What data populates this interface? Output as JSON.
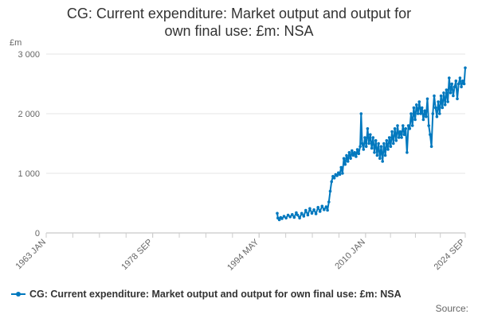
{
  "chart_data": {
    "type": "line",
    "title_lines": [
      "CG: Current expenditure: Market output and output for",
      "own final use: £m: NSA"
    ],
    "unit_label": "£m",
    "yticks": [
      0,
      1000,
      2000,
      3000
    ],
    "ytick_labels": [
      "0",
      "1 000",
      "2 000",
      "3 000"
    ],
    "ylim": [
      0,
      3000
    ],
    "xlim": [
      1963.0,
      2024.67
    ],
    "xticks": [
      1963.0,
      1978.67,
      1994.33,
      2010.0,
      2024.67
    ],
    "xtick_labels": [
      "1963 JAN",
      "1978 SEP",
      "1994 MAY",
      "2010 JAN",
      "2024 SEP"
    ],
    "grid": "horizontal",
    "legend_position": "bottom",
    "series": [
      {
        "name": "CG: Current expenditure: Market output and output for own final use: £m: NSA",
        "color": "#0078be",
        "points": [
          [
            1997.0,
            330
          ],
          [
            1997.1,
            250
          ],
          [
            1997.3,
            220
          ],
          [
            1997.5,
            260
          ],
          [
            1997.7,
            240
          ],
          [
            1998.0,
            280
          ],
          [
            1998.3,
            250
          ],
          [
            1998.6,
            300
          ],
          [
            1998.9,
            270
          ],
          [
            1999.2,
            310
          ],
          [
            1999.5,
            260
          ],
          [
            1999.8,
            340
          ],
          [
            2000.0,
            300
          ],
          [
            2000.3,
            250
          ],
          [
            2000.6,
            330
          ],
          [
            2000.9,
            280
          ],
          [
            2001.2,
            380
          ],
          [
            2001.5,
            300
          ],
          [
            2001.8,
            410
          ],
          [
            2002.1,
            330
          ],
          [
            2002.4,
            390
          ],
          [
            2002.7,
            320
          ],
          [
            2003.0,
            430
          ],
          [
            2003.3,
            360
          ],
          [
            2003.6,
            450
          ],
          [
            2003.9,
            390
          ],
          [
            2004.2,
            440
          ],
          [
            2004.4,
            380
          ],
          [
            2004.6,
            520
          ],
          [
            2004.8,
            700
          ],
          [
            2005.0,
            860
          ],
          [
            2005.2,
            950
          ],
          [
            2005.4,
            920
          ],
          [
            2005.6,
            980
          ],
          [
            2005.8,
            960
          ],
          [
            2006.0,
            1010
          ],
          [
            2006.2,
            980
          ],
          [
            2006.4,
            1100
          ],
          [
            2006.6,
            1000
          ],
          [
            2006.8,
            1250
          ],
          [
            2007.0,
            1150
          ],
          [
            2007.2,
            1300
          ],
          [
            2007.4,
            1200
          ],
          [
            2007.6,
            1350
          ],
          [
            2007.8,
            1250
          ],
          [
            2008.0,
            1380
          ],
          [
            2008.2,
            1300
          ],
          [
            2008.4,
            1350
          ],
          [
            2008.6,
            1280
          ],
          [
            2008.8,
            1400
          ],
          [
            2009.0,
            1330
          ],
          [
            2009.2,
            1450
          ],
          [
            2009.35,
            2000
          ],
          [
            2009.5,
            1500
          ],
          [
            2009.7,
            1400
          ],
          [
            2009.9,
            1600
          ],
          [
            2010.1,
            1450
          ],
          [
            2010.3,
            1750
          ],
          [
            2010.5,
            1500
          ],
          [
            2010.7,
            1650
          ],
          [
            2010.9,
            1420
          ],
          [
            2011.1,
            1600
          ],
          [
            2011.3,
            1350
          ],
          [
            2011.5,
            1550
          ],
          [
            2011.7,
            1300
          ],
          [
            2011.9,
            1500
          ],
          [
            2012.1,
            1250
          ],
          [
            2012.3,
            1450
          ],
          [
            2012.5,
            1200
          ],
          [
            2012.7,
            1500
          ],
          [
            2012.9,
            1300
          ],
          [
            2013.1,
            1550
          ],
          [
            2013.3,
            1400
          ],
          [
            2013.5,
            1600
          ],
          [
            2013.7,
            1450
          ],
          [
            2013.9,
            1700
          ],
          [
            2014.1,
            1500
          ],
          [
            2014.3,
            1750
          ],
          [
            2014.5,
            1550
          ],
          [
            2014.7,
            1800
          ],
          [
            2014.9,
            1600
          ],
          [
            2015.1,
            1700
          ],
          [
            2015.3,
            1600
          ],
          [
            2015.5,
            1800
          ],
          [
            2015.7,
            1650
          ],
          [
            2015.9,
            1750
          ],
          [
            2016.1,
            1350
          ],
          [
            2016.3,
            1800
          ],
          [
            2016.5,
            1750
          ],
          [
            2016.7,
            2000
          ],
          [
            2016.9,
            1800
          ],
          [
            2017.1,
            2100
          ],
          [
            2017.3,
            1900
          ],
          [
            2017.5,
            2150
          ],
          [
            2017.7,
            2000
          ],
          [
            2017.9,
            2200
          ],
          [
            2018.1,
            2000
          ],
          [
            2018.3,
            2100
          ],
          [
            2018.5,
            1900
          ],
          [
            2018.7,
            2050
          ],
          [
            2018.9,
            1950
          ],
          [
            2019.1,
            2250
          ],
          [
            2019.3,
            1800
          ],
          [
            2019.5,
            1650
          ],
          [
            2019.7,
            1450
          ],
          [
            2019.9,
            2000
          ],
          [
            2020.1,
            2300
          ],
          [
            2020.3,
            2100
          ],
          [
            2020.5,
            1950
          ],
          [
            2020.7,
            2200
          ],
          [
            2020.9,
            2000
          ],
          [
            2021.1,
            2300
          ],
          [
            2021.3,
            2100
          ],
          [
            2021.5,
            2350
          ],
          [
            2021.7,
            2150
          ],
          [
            2021.9,
            2400
          ],
          [
            2022.1,
            2200
          ],
          [
            2022.3,
            2600
          ],
          [
            2022.5,
            2350
          ],
          [
            2022.7,
            2500
          ],
          [
            2022.9,
            2300
          ],
          [
            2023.1,
            2450
          ],
          [
            2023.3,
            2550
          ],
          [
            2023.5,
            2250
          ],
          [
            2023.7,
            2500
          ],
          [
            2023.9,
            2600
          ],
          [
            2024.1,
            2450
          ],
          [
            2024.3,
            2550
          ],
          [
            2024.5,
            2500
          ],
          [
            2024.67,
            2770
          ]
        ]
      }
    ],
    "source_label": "Source:"
  }
}
